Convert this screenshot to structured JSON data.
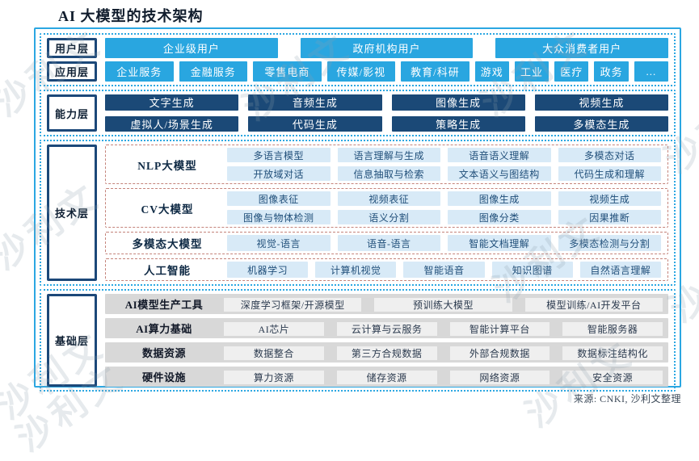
{
  "title": "AI 大模型的技术架构",
  "source": "来源: CNKI, 沙利文整理",
  "watermark": {
    "text": "沙利文"
  },
  "colors": {
    "accent_blue": "#29A6E0",
    "navy": "#1B4977",
    "light_blue_item": "#D8EAF7",
    "dashed_group_border": "#C4837A",
    "gray_bar": "#D8D8D8",
    "gray_item": "#EFEFEF"
  },
  "user_layer": {
    "label": "用户层",
    "items": [
      "企业级用户",
      "政府机构用户",
      "大众消费者用户"
    ]
  },
  "app_layer": {
    "label": "应用层",
    "items": [
      "企业服务",
      "金融服务",
      "零售电商",
      "传媒/影视",
      "教育/科研",
      "游戏",
      "工业",
      "医疗",
      "政务",
      "..."
    ]
  },
  "capability_layer": {
    "label": "能力层",
    "rows": [
      [
        "文字生成",
        "音频生成",
        "图像生成",
        "视频生成"
      ],
      [
        "虚拟人/场景生成",
        "代码生成",
        "策略生成",
        "多模态生成"
      ]
    ]
  },
  "technology_layer": {
    "label": "技术层",
    "groups": [
      {
        "label": "NLP大模型",
        "rows": [
          [
            "多语言模型",
            "语言理解与生成",
            "语音语义理解",
            "多模态对话"
          ],
          [
            "开放域对话",
            "信息抽取与检索",
            "文本语义与图结构",
            "代码生成和理解"
          ]
        ]
      },
      {
        "label": "CV大模型",
        "rows": [
          [
            "图像表征",
            "视频表征",
            "图像生成",
            "视频生成"
          ],
          [
            "图像与物体检测",
            "语义分割",
            "图像分类",
            "因果推断"
          ]
        ]
      },
      {
        "label": "多模态大模型",
        "rows": [
          [
            "视觉-语言",
            "语音-语言",
            "智能文档理解",
            "多模态检测与分割"
          ]
        ]
      },
      {
        "label": "人工智能",
        "rows": [
          [
            "机器学习",
            "计算机视觉",
            "智能语音",
            "知识图谱",
            "自然语言理解"
          ]
        ]
      }
    ]
  },
  "foundation_layer": {
    "label": "基础层",
    "rows": [
      {
        "label": "AI模型生产工具",
        "items": [
          "深度学习框架/开源模型",
          "预训练大模型",
          "模型训练/AI开发平台"
        ]
      },
      {
        "label": "AI算力基础",
        "items": [
          "AI芯片",
          "云计算与云服务",
          "智能计算平台",
          "智能服务器"
        ]
      },
      {
        "label": "数据资源",
        "items": [
          "数据整合",
          "第三方合规数据",
          "外部合规数据",
          "数据标注结构化"
        ]
      },
      {
        "label": "硬件设施",
        "items": [
          "算力资源",
          "储存资源",
          "网络资源",
          "安全资源"
        ]
      }
    ]
  }
}
